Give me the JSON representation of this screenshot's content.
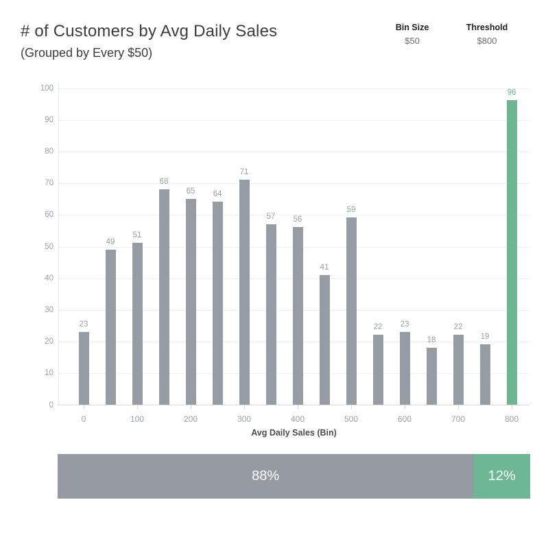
{
  "header": {
    "title": "# of Customers by Avg Daily Sales",
    "subtitle": "(Grouped by Every $50)"
  },
  "params": {
    "bin_size": {
      "label": "Bin Size",
      "value": "$50"
    },
    "threshold": {
      "label": "Threshold",
      "value": "$800"
    }
  },
  "chart_data": {
    "type": "bar",
    "title": "# of Customers by Avg Daily Sales (Grouped by Every $50)",
    "xlabel": "Avg Daily Sales (Bin)",
    "ylabel": "",
    "bins": [
      0,
      50,
      100,
      150,
      200,
      250,
      300,
      350,
      400,
      450,
      500,
      550,
      600,
      650,
      700,
      750,
      800
    ],
    "values": [
      23,
      49,
      51,
      68,
      65,
      64,
      71,
      57,
      56,
      41,
      59,
      22,
      23,
      18,
      22,
      19,
      96
    ],
    "highlight_bin": 800,
    "yticks": [
      0,
      10,
      20,
      30,
      40,
      50,
      60,
      70,
      80,
      90,
      100
    ],
    "xticks": [
      0,
      100,
      200,
      300,
      400,
      500,
      600,
      700,
      800
    ],
    "ylim": [
      0,
      100
    ],
    "grid": true,
    "colors": {
      "bar": "#959CA4",
      "highlight": "#6CB792",
      "label": "#9ca1a7",
      "highlight_label": "#6CB792"
    }
  },
  "footer_bar": {
    "segments": [
      {
        "label": "88%",
        "pct": 88,
        "color": "#969BA3"
      },
      {
        "label": "12%",
        "pct": 12,
        "color": "#6EB794"
      }
    ]
  }
}
